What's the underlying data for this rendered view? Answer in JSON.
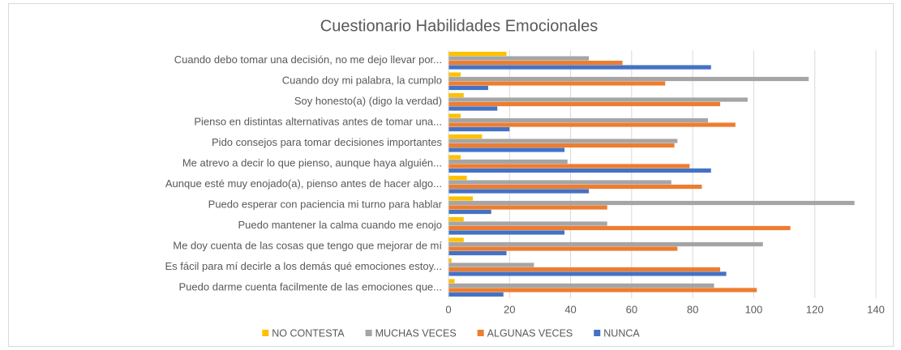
{
  "chart_data": {
    "type": "bar",
    "orientation": "horizontal",
    "title": "Cuestionario Habilidades Emocionales",
    "categories": [
      "Cuando debo tomar una decisión, no me dejo llevar por...",
      "Cuando doy mi palabra, la cumplo",
      "Soy honesto(a) (digo la verdad)",
      "Pienso en distintas alternativas antes de tomar una...",
      "Pido consejos para tomar decisiones importantes",
      "Me atrevo a decir lo que pienso, aunque haya alguién...",
      "Aunque esté muy enojado(a), pienso antes de hacer algo...",
      "Puedo esperar con paciencia mi turno para hablar",
      "Puedo mantener la calma cuando me enojo",
      "Me doy cuenta de las cosas que tengo que mejorar de mí",
      "Es fácil para mí decirle a los demás qué emociones estoy...",
      "Puedo darme cuenta facilmente de las emociones que..."
    ],
    "series": [
      {
        "name": "NO CONTESTA",
        "color": "#ffc000",
        "values": [
          19,
          4,
          5,
          4,
          11,
          4,
          6,
          8,
          5,
          5,
          1,
          2
        ]
      },
      {
        "name": "MUCHAS VECES",
        "color": "#a5a5a5",
        "values": [
          46,
          118,
          98,
          85,
          75,
          39,
          73,
          133,
          52,
          103,
          28,
          87
        ]
      },
      {
        "name": "ALGUNAS VECES",
        "color": "#ed7d31",
        "values": [
          57,
          71,
          89,
          94,
          74,
          79,
          83,
          52,
          112,
          75,
          89,
          101
        ]
      },
      {
        "name": "NUNCA",
        "color": "#4472c4",
        "values": [
          86,
          13,
          16,
          20,
          38,
          86,
          46,
          14,
          38,
          19,
          91,
          18
        ]
      }
    ],
    "xlim": [
      0,
      140
    ],
    "xticks": [
      0,
      20,
      40,
      60,
      80,
      100,
      120,
      140
    ],
    "grid": true,
    "legend": "bottom"
  }
}
